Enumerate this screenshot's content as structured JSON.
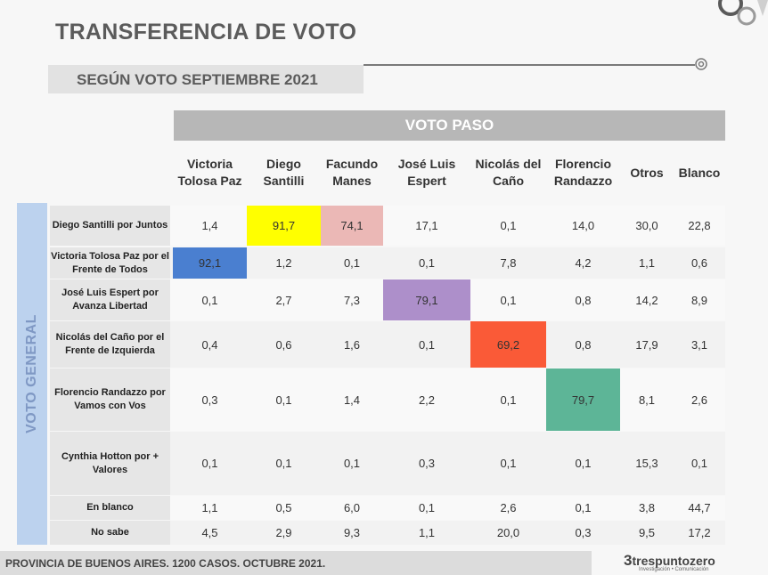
{
  "header": {
    "title": "TRANSFERENCIA DE VOTO",
    "subtitle": "SEGÚN VOTO SEPTIEMBRE 2021"
  },
  "footer": {
    "note": "PROVINCIA DE BUENOS AIRES. 1200 CASOS. OCTUBRE 2021.",
    "brand": "trespuntozero",
    "brand_tagline": "Investigación • Comunicación"
  },
  "colors": {
    "diagonal_santilli": "#ffff00",
    "manes": "#ebb8b6",
    "tolosa": "#4a7fd0",
    "espert": "#ad8fca",
    "delcano": "#fa5a37",
    "randazzo": "#5db597",
    "voto_general": "#bcd2ee",
    "header_bar": "#b7b7b7"
  },
  "chart_data": {
    "type": "table",
    "title": "TRANSFERENCIA DE VOTO",
    "subtitle": "SEGÚN VOTO SEPTIEMBRE 2021",
    "column_group": "VOTO PASO",
    "row_group": "VOTO GENERAL",
    "columns": [
      "Victoria Tolosa Paz",
      "Diego Santilli",
      "Facundo Manes",
      "José Luis Espert",
      "Nicolás del Caño",
      "Florencio Randazzo",
      "Otros",
      "Blanco"
    ],
    "rows": [
      {
        "label": "Diego Santilli por Juntos",
        "values": [
          "1,4",
          "91,7",
          "74,1",
          "17,1",
          "0,1",
          "14,0",
          "30,0",
          "22,8"
        ]
      },
      {
        "label": "Victoria Tolosa Paz por el Frente de Todos",
        "values": [
          "92,1",
          "1,2",
          "0,1",
          "0,1",
          "7,8",
          "4,2",
          "1,1",
          "0,6"
        ]
      },
      {
        "label": "José Luis Espert por Avanza Libertad",
        "values": [
          "0,1",
          "2,7",
          "7,3",
          "79,1",
          "0,1",
          "0,8",
          "14,2",
          "8,9"
        ]
      },
      {
        "label": "Nicolás del Caño por el Frente de Izquierda",
        "values": [
          "0,4",
          "0,6",
          "1,6",
          "0,1",
          "69,2",
          "0,8",
          "17,9",
          "3,1"
        ]
      },
      {
        "label": "Florencio Randazzo por Vamos con Vos",
        "values": [
          "0,3",
          "0,1",
          "1,4",
          "2,2",
          "0,1",
          "79,7",
          "8,1",
          "2,6"
        ]
      },
      {
        "label": "Cynthia Hotton por + Valores",
        "values": [
          "0,1",
          "0,1",
          "0,1",
          "0,3",
          "0,1",
          "0,1",
          "15,3",
          "0,1"
        ]
      },
      {
        "label": "En blanco",
        "values": [
          "1,1",
          "0,5",
          "6,0",
          "0,1",
          "2,6",
          "0,1",
          "3,8",
          "44,7"
        ]
      },
      {
        "label": "No sabe",
        "values": [
          "4,5",
          "2,9",
          "9,3",
          "1,1",
          "20,0",
          "0,3",
          "9,5",
          "17,2"
        ]
      }
    ],
    "highlights": [
      {
        "row": 0,
        "col": 1,
        "color": "#ffff00"
      },
      {
        "row": 0,
        "col": 2,
        "color": "#ebb8b6"
      },
      {
        "row": 1,
        "col": 0,
        "color": "#4a7fd0"
      },
      {
        "row": 2,
        "col": 3,
        "color": "#ad8fca"
      },
      {
        "row": 3,
        "col": 4,
        "color": "#fa5a37"
      },
      {
        "row": 4,
        "col": 5,
        "color": "#5db597"
      }
    ]
  }
}
